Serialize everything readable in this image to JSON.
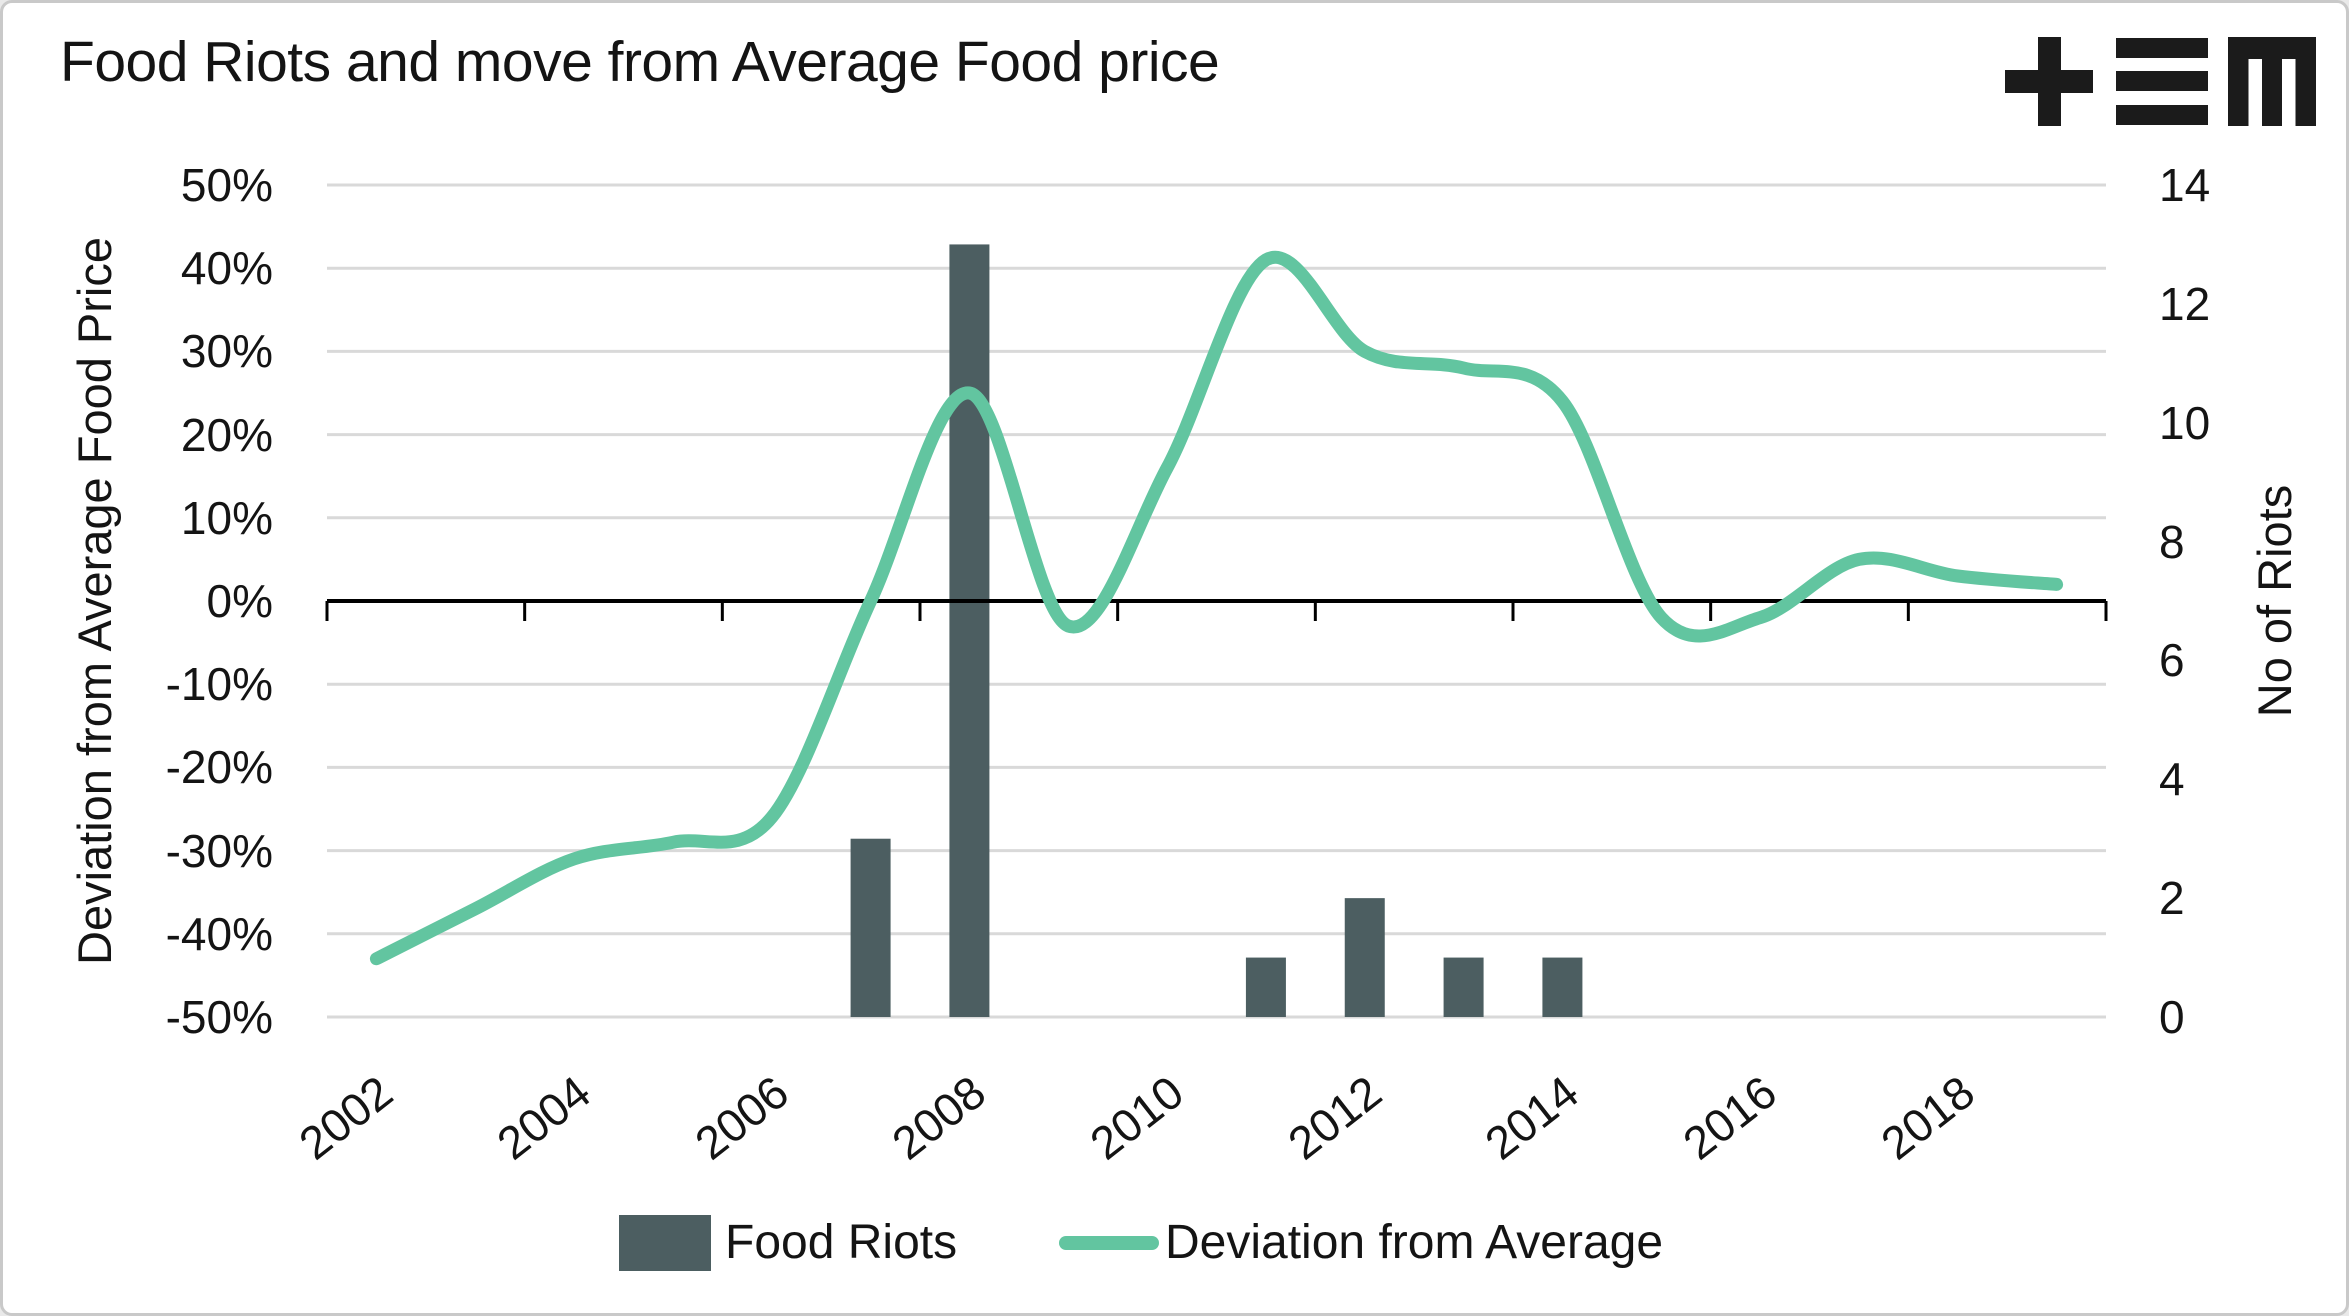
{
  "title": "Food Riots and move from Average Food price",
  "logo": {
    "icon": "tem-logo",
    "color": "#1b1b1b"
  },
  "colors": {
    "bar": "#4c5e61",
    "line": "#62c5a0",
    "grid": "#d9d9d9",
    "axis": "#000000",
    "background": "#ffffff",
    "border": "#c9c9c9",
    "text": "#141414"
  },
  "left_axis": {
    "title": "Deviation from Average Food Price",
    "tick_labels": [
      "50%",
      "40%",
      "30%",
      "20%",
      "10%",
      "0%",
      "-10%",
      "-20%",
      "-30%",
      "-40%",
      "-50%"
    ],
    "tick_values": [
      50,
      40,
      30,
      20,
      10,
      0,
      -10,
      -20,
      -30,
      -40,
      -50
    ]
  },
  "right_axis": {
    "title": "No of Riots",
    "tick_labels": [
      "14",
      "12",
      "10",
      "8",
      "6",
      "4",
      "2",
      "0"
    ],
    "tick_values": [
      14,
      12,
      10,
      8,
      6,
      4,
      2,
      0
    ]
  },
  "x_axis": {
    "tick_labels": [
      "2002",
      "2004",
      "2006",
      "2008",
      "2010",
      "2012",
      "2014",
      "2016",
      "2018"
    ]
  },
  "legend": {
    "position": "bottom",
    "items": [
      {
        "label": "Food Riots",
        "swatch": "bar"
      },
      {
        "label": "Deviation from Average",
        "swatch": "line"
      }
    ]
  },
  "chart_data": {
    "type": "combo-bar-line",
    "title": "Food Riots and move from Average Food price",
    "x": [
      2002,
      2003,
      2004,
      2005,
      2006,
      2007,
      2008,
      2009,
      2010,
      2011,
      2012,
      2013,
      2014,
      2015,
      2016,
      2017,
      2018,
      2019
    ],
    "series": [
      {
        "name": "Food Riots",
        "type": "bar",
        "axis": "right",
        "color": "#4c5e61",
        "values": [
          0,
          0,
          0,
          0,
          0,
          3,
          13,
          0,
          0,
          1,
          2,
          1,
          1,
          0,
          0,
          0,
          0,
          0
        ]
      },
      {
        "name": "Deviation from Average",
        "type": "line",
        "axis": "left",
        "color": "#62c5a0",
        "values": [
          -43,
          -37,
          -31,
          -29,
          -26,
          0,
          25,
          -3,
          16,
          41,
          30,
          28,
          24,
          -2,
          -2,
          5,
          3,
          2
        ]
      }
    ],
    "left_ylabel": "Deviation from Average Food Price",
    "right_ylabel": "No of Riots",
    "left_ylim": [
      -50,
      50
    ],
    "right_ylim": [
      0,
      14
    ],
    "grid": "horizontal",
    "legend_position": "bottom"
  }
}
